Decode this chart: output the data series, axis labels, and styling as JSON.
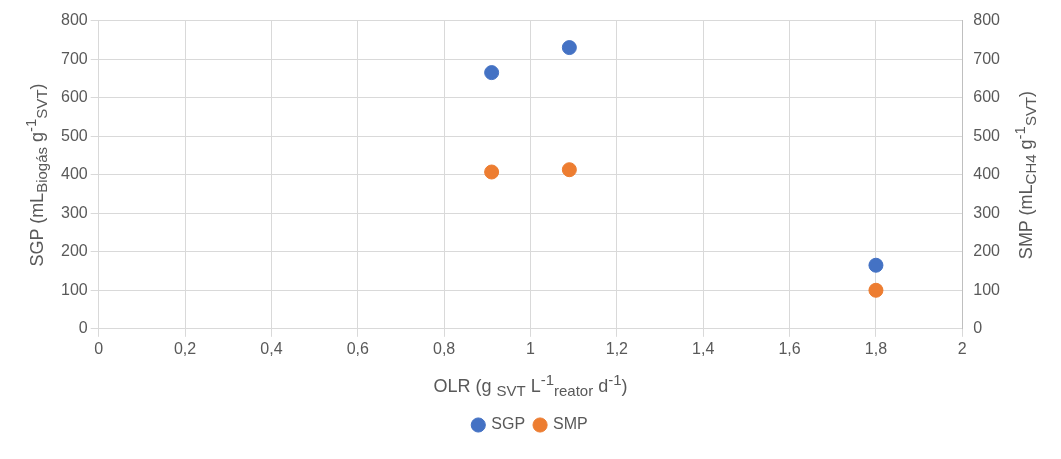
{
  "chart_data": {
    "type": "scatter",
    "xlabel": "OLR (g $_{SVT}$ L$^{-1}$$_{reator}$ d$^{-1}$)",
    "ylabel": "SGP (mL$_{Biogás}$ g$^{-1}$$_{SVT}$)",
    "y2label": "SMP (mL$_{CH4}$ g$^{-1}$$_{SVT}$)",
    "x": [
      0.91,
      1.09,
      1.8
    ],
    "series": [
      {
        "name": "SGP",
        "color": "#4472c4",
        "values": [
          665,
          730,
          165
        ]
      },
      {
        "name": "SMP",
        "color": "#ed7d31",
        "values": [
          407,
          413,
          100
        ],
        "axis": "y2"
      }
    ],
    "xlim": [
      0,
      2
    ],
    "xticks": [
      0,
      {
        "value": 0.2,
        "label": "0,2"
      },
      {
        "value": 0.4,
        "label": "0,4"
      },
      {
        "value": 0.6,
        "label": "0,6"
      },
      {
        "value": 0.8,
        "label": "0,8"
      },
      1,
      {
        "value": 1.2,
        "label": "1,2"
      },
      {
        "value": 1.4,
        "label": "1,4"
      },
      {
        "value": 1.6,
        "label": "1,6"
      },
      {
        "value": 1.8,
        "label": "1,8"
      },
      2
    ],
    "ylim": [
      0,
      800
    ],
    "yticks": [
      0,
      100,
      200,
      300,
      400,
      500,
      600,
      700,
      800
    ],
    "y2lim": [
      0,
      800
    ],
    "y2ticks": [
      0,
      100,
      200,
      300,
      400,
      500,
      600,
      700,
      800
    ],
    "grid": true,
    "legend": "bottom",
    "marker": "circle"
  }
}
